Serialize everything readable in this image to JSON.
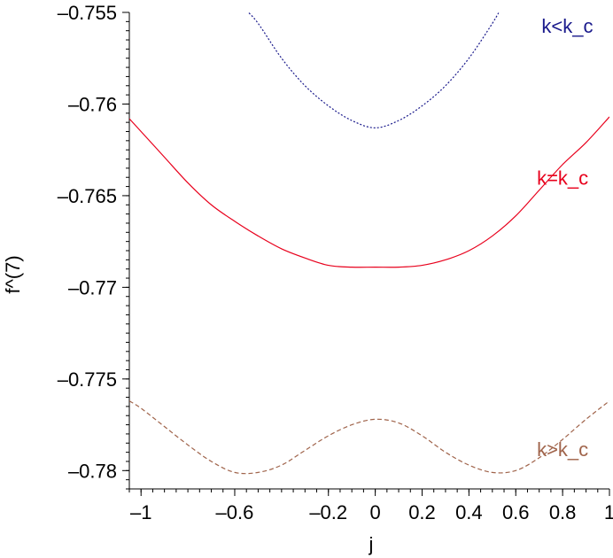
{
  "chart_data": {
    "type": "line",
    "title": "",
    "xlabel": "j",
    "ylabel": "f^(7)",
    "xlim": [
      -1.05,
      1.0
    ],
    "ylim": [
      -0.781,
      -0.755
    ],
    "grid": false,
    "legend": "none",
    "x_ticks": [
      {
        "value": -1,
        "label": "–1"
      },
      {
        "value": -0.6,
        "label": "–0.6"
      },
      {
        "value": -0.2,
        "label": "–0.2"
      },
      {
        "value": 0,
        "label": "0"
      },
      {
        "value": 0.2,
        "label": "0.2"
      },
      {
        "value": 0.4,
        "label": "0.4"
      },
      {
        "value": 0.6,
        "label": "0.6"
      },
      {
        "value": 0.8,
        "label": "0.8"
      },
      {
        "value": 1,
        "label": "1"
      }
    ],
    "y_ticks": [
      {
        "value": -0.755,
        "label": "–0.755"
      },
      {
        "value": -0.76,
        "label": "–0.76"
      },
      {
        "value": -0.765,
        "label": "–0.765"
      },
      {
        "value": -0.77,
        "label": "–0.77"
      },
      {
        "value": -0.775,
        "label": "–0.775"
      },
      {
        "value": -0.78,
        "label": "–0.78"
      }
    ],
    "series": [
      {
        "name": "k<k_c",
        "color": "#1a1a8c",
        "dash": "dotted",
        "label_at": [
          0.82,
          -0.7561
        ],
        "x": [
          -0.55,
          -0.5,
          -0.4,
          -0.3,
          -0.2,
          -0.1,
          0.0,
          0.1,
          0.2,
          0.3,
          0.4,
          0.5,
          0.54
        ],
        "y": [
          -0.7549,
          -0.7556,
          -0.7575,
          -0.759,
          -0.7601,
          -0.7609,
          -0.7613,
          -0.7609,
          -0.7601,
          -0.759,
          -0.7575,
          -0.7556,
          -0.7547
        ]
      },
      {
        "name": "k=k_c",
        "color": "#e8001c",
        "dash": "solid",
        "label_at": [
          0.8,
          -0.7644
        ],
        "x": [
          -1.05,
          -1.0,
          -0.9,
          -0.8,
          -0.7,
          -0.6,
          -0.5,
          -0.4,
          -0.3,
          -0.2,
          -0.1,
          0.0,
          0.1,
          0.2,
          0.3,
          0.4,
          0.5,
          0.6,
          0.7,
          0.8,
          0.9,
          1.0
        ],
        "y": [
          -0.7608,
          -0.7615,
          -0.7629,
          -0.7643,
          -0.7655,
          -0.7664,
          -0.7672,
          -0.7679,
          -0.7684,
          -0.7688,
          -0.7689,
          -0.7689,
          -0.7689,
          -0.7688,
          -0.7685,
          -0.768,
          -0.7672,
          -0.7661,
          -0.7647,
          -0.7633,
          -0.7621,
          -0.7607
        ]
      },
      {
        "name": "k>k_c",
        "color": "#a0644b",
        "dash": "dashed",
        "label_at": [
          0.8,
          -0.7792
        ],
        "x": [
          -1.05,
          -1.0,
          -0.9,
          -0.8,
          -0.7,
          -0.6,
          -0.5,
          -0.4,
          -0.3,
          -0.2,
          -0.1,
          0.0,
          0.1,
          0.2,
          0.3,
          0.4,
          0.5,
          0.6,
          0.7,
          0.8,
          0.9,
          1.0
        ],
        "y": [
          -0.7762,
          -0.7766,
          -0.7776,
          -0.7786,
          -0.7795,
          -0.7801,
          -0.7801,
          -0.7797,
          -0.7789,
          -0.7781,
          -0.7775,
          -0.7772,
          -0.7774,
          -0.7781,
          -0.779,
          -0.7797,
          -0.7801,
          -0.78,
          -0.7793,
          -0.7783,
          -0.7772,
          -0.7762
        ]
      }
    ]
  }
}
